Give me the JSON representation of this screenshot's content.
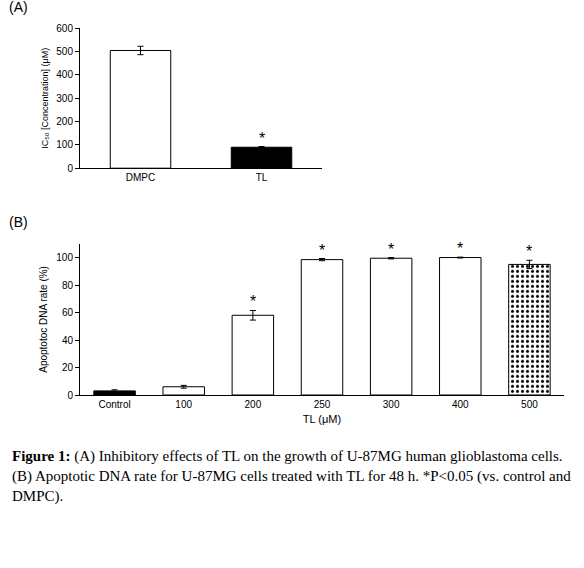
{
  "chart_data": [
    {
      "type": "bar",
      "title": "(A)",
      "categories": [
        "DMPC",
        "TL"
      ],
      "values": [
        505,
        90
      ],
      "errors": [
        18,
        3
      ],
      "colors": [
        "#ffffff",
        "#000000"
      ],
      "ylabel": "IC₅₀ [Concentration] (μM)",
      "ylim": [
        0,
        600
      ],
      "yticks": [
        0,
        100,
        200,
        300,
        400,
        500,
        600
      ],
      "grid": false,
      "annotations": [
        {
          "category": "TL",
          "text": "*"
        }
      ]
    },
    {
      "type": "bar",
      "title": "(B)",
      "categories": [
        "Control",
        "100",
        "200",
        "250",
        "300",
        "400",
        "500"
      ],
      "values": [
        3,
        6,
        58,
        98.5,
        99.5,
        100,
        95
      ],
      "errors": [
        0.8,
        1,
        3.5,
        0.8,
        0.5,
        0.3,
        3
      ],
      "colors": [
        "#000000",
        "#ffffff",
        "#ffffff",
        "#ffffff",
        "#ffffff",
        "#ffffff",
        "#000000"
      ],
      "xlabel": "TL (μM)",
      "ylabel": "Apoptotoc DNA rate (%)",
      "ylim": [
        0,
        110
      ],
      "yticks": [
        0,
        20,
        40,
        60,
        80,
        100
      ],
      "grid": false,
      "annotations": [
        {
          "category": "200",
          "text": "*"
        },
        {
          "category": "250",
          "text": "*"
        },
        {
          "category": "300",
          "text": "*"
        },
        {
          "category": "400",
          "text": "*"
        },
        {
          "category": "500",
          "text": "*"
        }
      ]
    }
  ],
  "caption": {
    "label": "Figure 1:",
    "text": "(A) Inhibitory effects of TL on the growth of U-87MG human glioblastoma cells. (B) Apoptotic DNA rate for U-87MG cells treated with TL for 48 h. *P<0.05 (vs. control and DMPC)."
  }
}
